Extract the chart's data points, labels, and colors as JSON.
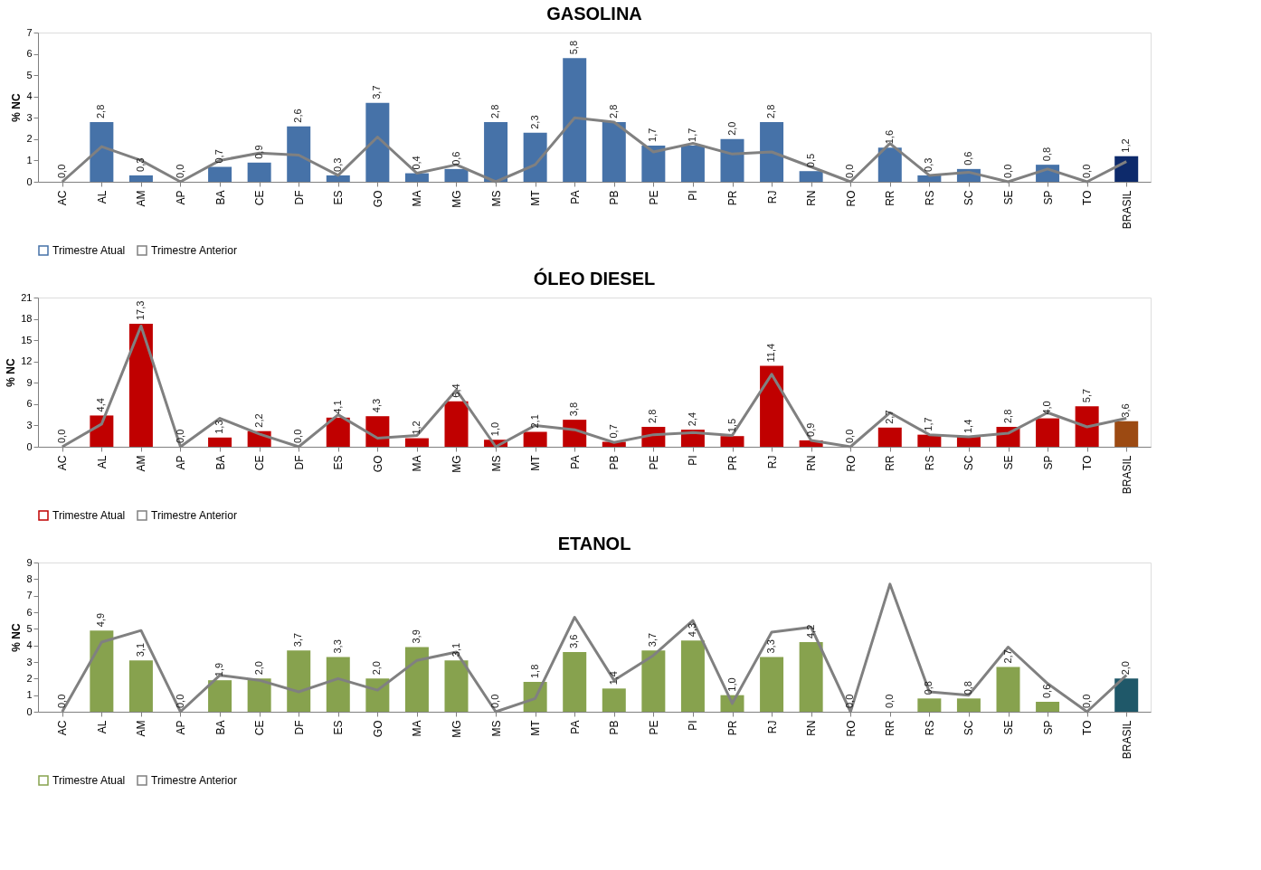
{
  "chart_data": [
    {
      "type": "bar",
      "title": "GASOLINA",
      "ylabel": "% NC",
      "categories": [
        "AC",
        "AL",
        "AM",
        "AP",
        "BA",
        "CE",
        "DF",
        "ES",
        "GO",
        "MA",
        "MG",
        "MS",
        "MT",
        "PA",
        "PB",
        "PE",
        "PI",
        "PR",
        "RJ",
        "RN",
        "RO",
        "RR",
        "RS",
        "SC",
        "SE",
        "SP",
        "TO",
        "BRASIL"
      ],
      "ylim": [
        0,
        7
      ],
      "yticks": [
        0,
        1,
        2,
        3,
        4,
        5,
        6,
        7
      ],
      "legend": "bottom",
      "grid": false,
      "series": [
        {
          "name": "Trimestre Atual",
          "type": "bar",
          "color": "#4672a8",
          "colors": [
            "#4672a8",
            "#4672a8",
            "#4672a8",
            "#4672a8",
            "#4672a8",
            "#4672a8",
            "#4672a8",
            "#4672a8",
            "#4672a8",
            "#4672a8",
            "#4672a8",
            "#4672a8",
            "#4672a8",
            "#4672a8",
            "#4672a8",
            "#4672a8",
            "#4672a8",
            "#4672a8",
            "#4672a8",
            "#4672a8",
            "#4672a8",
            "#4672a8",
            "#4672a8",
            "#4672a8",
            "#4672a8",
            "#4672a8",
            "#4672a8",
            "#0d2a6b"
          ],
          "values": [
            0,
            2.8,
            0.3,
            0,
            0.7,
            0.9,
            2.6,
            0.3,
            3.7,
            0.4,
            0.6,
            2.8,
            2.3,
            5.8,
            2.8,
            1.7,
            1.7,
            2.0,
            2.8,
            0.5,
            0,
            1.6,
            0.3,
            0.6,
            0,
            0.8,
            0,
            1.2
          ],
          "value_labels": [
            "0,0",
            "2,8",
            "0,3",
            "0,0",
            "0,7",
            "0,9",
            "2,6",
            "0,3",
            "3,7",
            "0,4",
            "0,6",
            "2,8",
            "2,3",
            "5,8",
            "2,8",
            "1,7",
            "1,7",
            "2,0",
            "2,8",
            "0,5",
            "0,0",
            "1,6",
            "0,3",
            "0,6",
            "0,0",
            "0,8",
            "0,0",
            "1,2"
          ]
        },
        {
          "name": "Trimestre Anterior",
          "type": "line",
          "color": "#808080",
          "values": [
            0,
            1.65,
            1.0,
            0,
            1.0,
            1.35,
            1.25,
            0.3,
            2.1,
            0.4,
            0.8,
            0,
            0.8,
            3.0,
            2.8,
            1.4,
            1.8,
            1.3,
            1.4,
            0.7,
            0,
            1.8,
            0.3,
            0.45,
            0,
            0.6,
            0,
            0.95
          ]
        }
      ]
    },
    {
      "type": "bar",
      "title": "ÓLEO  DIESEL",
      "ylabel": "% NC",
      "categories": [
        "AC",
        "AL",
        "AM",
        "AP",
        "BA",
        "CE",
        "DF",
        "ES",
        "GO",
        "MA",
        "MG",
        "MS",
        "MT",
        "PA",
        "PB",
        "PE",
        "PI",
        "PR",
        "RJ",
        "RN",
        "RO",
        "RR",
        "RS",
        "SC",
        "SE",
        "SP",
        "TO",
        "BRASIL"
      ],
      "ylim": [
        0,
        21
      ],
      "yticks": [
        0,
        3,
        6,
        9,
        12,
        15,
        18,
        21
      ],
      "legend": "bottom",
      "grid": false,
      "series": [
        {
          "name": "Trimestre Atual",
          "type": "bar",
          "color": "#c00000",
          "colors": [
            "#c00000",
            "#c00000",
            "#c00000",
            "#c00000",
            "#c00000",
            "#c00000",
            "#c00000",
            "#c00000",
            "#c00000",
            "#c00000",
            "#c00000",
            "#c00000",
            "#c00000",
            "#c00000",
            "#c00000",
            "#c00000",
            "#c00000",
            "#c00000",
            "#c00000",
            "#c00000",
            "#c00000",
            "#c00000",
            "#c00000",
            "#c00000",
            "#c00000",
            "#c00000",
            "#c00000",
            "#9c4a12"
          ],
          "values": [
            0,
            4.4,
            17.3,
            0,
            1.3,
            2.2,
            0,
            4.1,
            4.3,
            1.2,
            6.4,
            1.0,
            2.1,
            3.8,
            0.7,
            2.8,
            2.4,
            1.5,
            11.4,
            0.9,
            0,
            2.7,
            1.7,
            1.4,
            2.8,
            4.0,
            5.7,
            3.6
          ],
          "value_labels": [
            "0,0",
            "4,4",
            "17,3",
            "0,0",
            "1,3",
            "2,2",
            "0,0",
            "4,1",
            "4,3",
            "1,2",
            "6,4",
            "1,0",
            "2,1",
            "3,8",
            "0,7",
            "2,8",
            "2,4",
            "1,5",
            "11,4",
            "0,9",
            "0,0",
            "2,7",
            "1,7",
            "1,4",
            "2,8",
            "4,0",
            "5,7",
            "3,6"
          ]
        },
        {
          "name": "Trimestre Anterior",
          "type": "line",
          "color": "#808080",
          "values": [
            0,
            3.2,
            17.0,
            0,
            4.0,
            1.8,
            0,
            4.5,
            1.2,
            1.6,
            8.0,
            0,
            3.0,
            2.4,
            0.6,
            1.7,
            2.0,
            1.6,
            10.2,
            0.9,
            0,
            4.8,
            1.7,
            1.4,
            1.9,
            4.8,
            2.8,
            4.0
          ]
        }
      ]
    },
    {
      "type": "bar",
      "title": "ETANOL",
      "ylabel": "% NC",
      "categories": [
        "AC",
        "AL",
        "AM",
        "AP",
        "BA",
        "CE",
        "DF",
        "ES",
        "GO",
        "MA",
        "MG",
        "MS",
        "MT",
        "PA",
        "PB",
        "PE",
        "PI",
        "PR",
        "RJ",
        "RN",
        "RO",
        "RR",
        "RS",
        "SC",
        "SE",
        "SP",
        "TO",
        "BRASIL"
      ],
      "ylim": [
        0,
        9
      ],
      "yticks": [
        0,
        1,
        2,
        3,
        4,
        5,
        6,
        7,
        8,
        9
      ],
      "legend": "bottom",
      "grid": false,
      "series": [
        {
          "name": "Trimestre Atual",
          "type": "bar",
          "color": "#87a24e",
          "colors": [
            "#87a24e",
            "#87a24e",
            "#87a24e",
            "#87a24e",
            "#87a24e",
            "#87a24e",
            "#87a24e",
            "#87a24e",
            "#87a24e",
            "#87a24e",
            "#87a24e",
            "#87a24e",
            "#87a24e",
            "#87a24e",
            "#87a24e",
            "#87a24e",
            "#87a24e",
            "#87a24e",
            "#87a24e",
            "#87a24e",
            "#87a24e",
            "#87a24e",
            "#87a24e",
            "#87a24e",
            "#87a24e",
            "#87a24e",
            "#87a24e",
            "#1f5869"
          ],
          "values": [
            0,
            4.9,
            3.1,
            0,
            1.9,
            2.0,
            3.7,
            3.3,
            2.0,
            3.9,
            3.1,
            0,
            1.8,
            3.6,
            1.4,
            3.7,
            4.3,
            1.0,
            3.3,
            4.2,
            0,
            0,
            0.8,
            0.8,
            2.7,
            0.6,
            0,
            2.0
          ],
          "value_labels": [
            "0,0",
            "4,9",
            "3,1",
            "0,0",
            "1,9",
            "2,0",
            "3,7",
            "3,3",
            "2,0",
            "3,9",
            "3,1",
            "0,0",
            "1,8",
            "3,6",
            "1,4",
            "3,7",
            "4,3",
            "1,0",
            "3,3",
            "4,2",
            "0,0",
            "0,0",
            "0,8",
            "0,8",
            "2,7",
            "0,6",
            "0,0",
            "2,0"
          ]
        },
        {
          "name": "Trimestre Anterior",
          "type": "line",
          "color": "#808080",
          "values": [
            0,
            4.2,
            4.9,
            0,
            2.2,
            1.9,
            1.2,
            2.0,
            1.3,
            3.1,
            3.6,
            0,
            0.8,
            5.7,
            1.9,
            3.4,
            5.5,
            0.5,
            4.8,
            5.1,
            0,
            7.7,
            1.2,
            1.0,
            3.9,
            1.7,
            0,
            2.2
          ]
        }
      ]
    }
  ]
}
